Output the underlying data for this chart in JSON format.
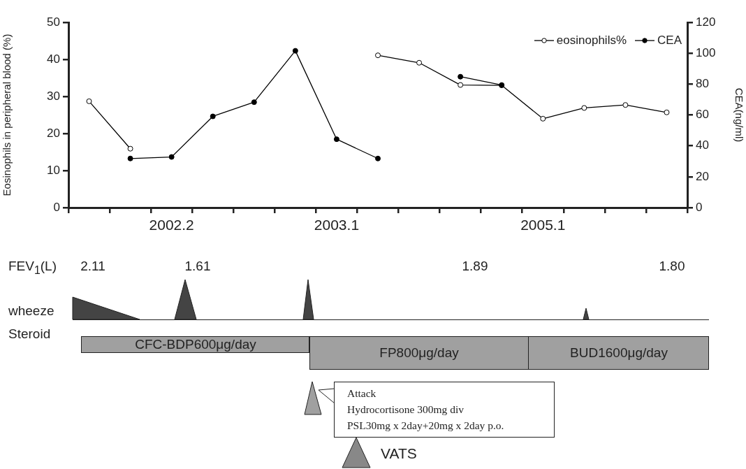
{
  "chart_data": {
    "type": "line",
    "ylabel": "Eosinophils in peripheral blood (%)",
    "y2label": "CEA(ng/ml)",
    "categories": [
      null,
      null,
      "2002.2",
      null,
      null,
      null,
      "2003.1",
      null,
      null,
      null,
      null,
      "2005.1",
      null,
      null,
      null
    ],
    "ylim": [
      0,
      50
    ],
    "yticks": [
      0,
      10,
      20,
      30,
      40,
      50
    ],
    "y2lim": [
      0,
      120
    ],
    "y2ticks": [
      0,
      20,
      40,
      60,
      80,
      100,
      120
    ],
    "series": [
      {
        "name": "eosinophils%",
        "color": "#000000",
        "values": [
          28.7,
          15.9,
          null,
          null,
          null,
          null,
          null,
          41.1,
          39.1,
          33.1,
          33.0,
          24.0,
          26.9,
          27.7,
          25.7
        ]
      },
      {
        "name": "CEA",
        "color": "#000000",
        "axis": "y2",
        "values": [
          null,
          31.8,
          32.8,
          59.1,
          68.3,
          101.6,
          44.3,
          31.8,
          null,
          84.8,
          79.4,
          null,
          null,
          null,
          null
        ]
      }
    ],
    "marker": "circle",
    "legend": "top right",
    "annotations": [
      "FEV$_{1}$(L)",
      "2.11",
      "1.61",
      "1.89",
      "1.80",
      "wheeze",
      "Steroid",
      "CFC-BDP600μg/day",
      "FP800μg/day",
      "BUD1600μg/day",
      "Attack\nHydrocortisone 300mg div\nPSL30mg x 2day+20mg x 2day p.o.",
      "VATS"
    ]
  }
}
